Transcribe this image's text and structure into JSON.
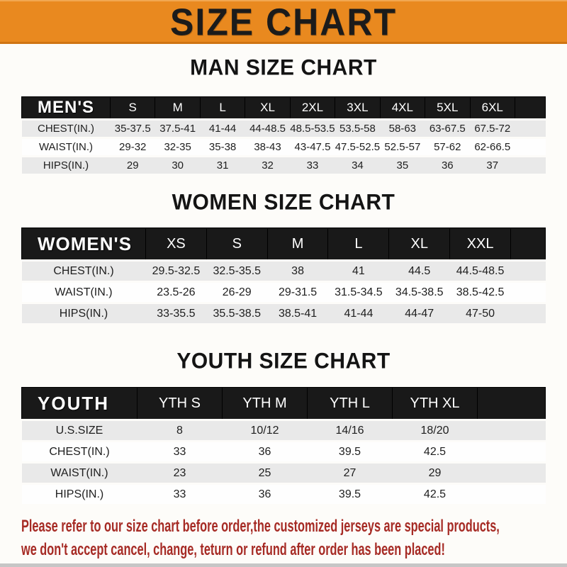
{
  "banner": {
    "title": "SIZE CHART",
    "bg_color": "#e9891f",
    "text_color": "#1b1b1b"
  },
  "sections": [
    {
      "title": "MAN SIZE CHART",
      "header_label": "MEN'S",
      "columns": [
        "S",
        "M",
        "L",
        "XL",
        "2XL",
        "3XL",
        "4XL",
        "5XL",
        "6XL"
      ],
      "rows": [
        {
          "label": "CHEST(IN.)",
          "values": [
            "35-37.5",
            "37.5-41",
            "41-44",
            "44-48.5",
            "48.5-53.5",
            "53.5-58",
            "58-63",
            "63-67.5",
            "67.5-72"
          ]
        },
        {
          "label": "WAIST(IN.)",
          "values": [
            "29-32",
            "32-35",
            "35-38",
            "38-43",
            "43-47.5",
            "47.5-52.5",
            "52.5-57",
            "57-62",
            "62-66.5"
          ]
        },
        {
          "label": "HIPS(IN.)",
          "values": [
            "29",
            "30",
            "31",
            "32",
            "33",
            "34",
            "35",
            "36",
            "37"
          ]
        }
      ]
    },
    {
      "title": "WOMEN SIZE CHART",
      "header_label": "WOMEN'S",
      "columns": [
        "XS",
        "S",
        "M",
        "L",
        "XL",
        "XXL"
      ],
      "rows": [
        {
          "label": "CHEST(IN.)",
          "values": [
            "29.5-32.5",
            "32.5-35.5",
            "38",
            "41",
            "44.5",
            "44.5-48.5"
          ]
        },
        {
          "label": "WAIST(IN.)",
          "values": [
            "23.5-26",
            "26-29",
            "29-31.5",
            "31.5-34.5",
            "34.5-38.5",
            "38.5-42.5"
          ]
        },
        {
          "label": "HIPS(IN.)",
          "values": [
            "33-35.5",
            "35.5-38.5",
            "38.5-41",
            "41-44",
            "44-47",
            "47-50"
          ]
        }
      ]
    },
    {
      "title": "YOUTH SIZE CHART",
      "header_label": "YOUTH",
      "columns": [
        "YTH S",
        "YTH M",
        "YTH L",
        "YTH XL"
      ],
      "rows": [
        {
          "label": "U.S.SIZE",
          "values": [
            "8",
            "10/12",
            "14/16",
            "18/20"
          ]
        },
        {
          "label": "CHEST(IN.)",
          "values": [
            "33",
            "36",
            "39.5",
            "42.5"
          ]
        },
        {
          "label": "WAIST(IN.)",
          "values": [
            "23",
            "25",
            "27",
            "29"
          ]
        },
        {
          "label": "HIPS(IN.)",
          "values": [
            "33",
            "36",
            "39.5",
            "42.5"
          ]
        }
      ]
    }
  ],
  "footer": {
    "line1": "Please refer to our size chart before order,the customized jerseys are special products,",
    "line2": "we don't accept cancel, change, teturn or refund after order has been placed!",
    "text_color": "#a62b25"
  },
  "colors": {
    "header_bar_bg": "#191919",
    "stripe_row_bg": "#e9e9e9",
    "banner_orange": "#e9891f"
  }
}
